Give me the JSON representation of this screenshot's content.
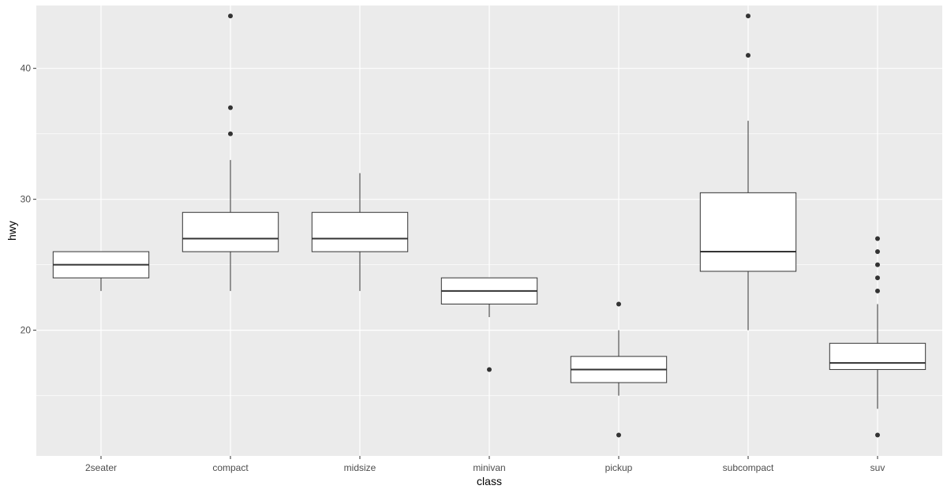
{
  "chart_data": {
    "type": "boxplot",
    "title": "",
    "xlabel": "class",
    "ylabel": "hwy",
    "ylim": [
      10.4,
      44.8
    ],
    "y_ticks": [
      20,
      30,
      40
    ],
    "grid": true,
    "colors": {
      "panel": "#ebebeb",
      "grid_major": "#ffffff",
      "box_fill": "#ffffff",
      "box_stroke": "#333333",
      "outlier": "#333333"
    },
    "categories": [
      "2seater",
      "compact",
      "midsize",
      "minivan",
      "pickup",
      "subcompact",
      "suv"
    ],
    "boxes": [
      {
        "category": "2seater",
        "min": 23,
        "q1": 24,
        "median": 25,
        "q3": 26,
        "max": 26,
        "outliers": []
      },
      {
        "category": "compact",
        "min": 23,
        "q1": 26,
        "median": 27,
        "q3": 29,
        "max": 33,
        "outliers": [
          35,
          37,
          44
        ]
      },
      {
        "category": "midsize",
        "min": 23,
        "q1": 26,
        "median": 27,
        "q3": 29,
        "max": 32,
        "outliers": []
      },
      {
        "category": "minivan",
        "min": 21,
        "q1": 22,
        "median": 23,
        "q3": 24,
        "max": 24,
        "outliers": [
          17
        ]
      },
      {
        "category": "pickup",
        "min": 15,
        "q1": 16,
        "median": 17,
        "q3": 18,
        "max": 20,
        "outliers": [
          12,
          22
        ]
      },
      {
        "category": "subcompact",
        "min": 20,
        "q1": 24.5,
        "median": 26,
        "q3": 30.5,
        "max": 36,
        "outliers": [
          41,
          44
        ]
      },
      {
        "category": "suv",
        "min": 14,
        "q1": 17,
        "median": 17.5,
        "q3": 19,
        "max": 22,
        "outliers": [
          12,
          23,
          24,
          25,
          26,
          27
        ]
      }
    ]
  }
}
